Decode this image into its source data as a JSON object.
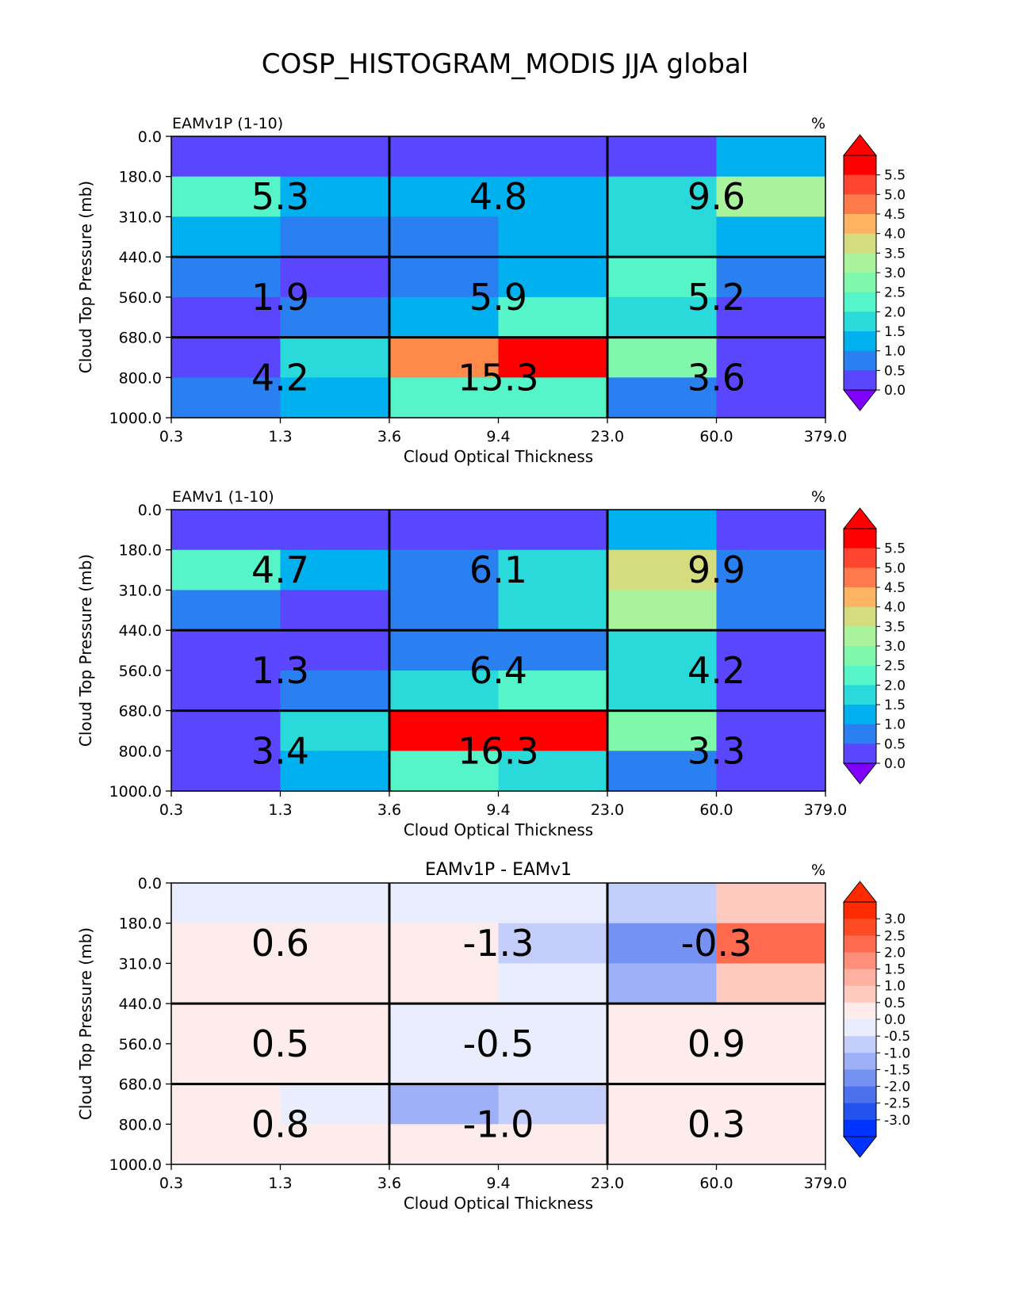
{
  "title": "COSP_HISTOGRAM_MODIS JJA global",
  "chart_data": [
    {
      "type": "heatmap",
      "title": "EAMv1P (1-10)",
      "units": "%",
      "xlabel": "Cloud Optical Thickness",
      "ylabel": "Cloud Top Pressure (mb)",
      "x_ticks": [
        "0.3",
        "1.3",
        "3.6",
        "9.4",
        "23.0",
        "60.0",
        "379.0"
      ],
      "y_ticks": [
        "0.0",
        "180.0",
        "310.0",
        "440.0",
        "560.0",
        "680.0",
        "800.0",
        "1000.0"
      ],
      "cell_colors": [
        [
          "#5a46ff",
          "#5a46ff",
          "#5a46ff",
          "#5a46ff",
          "#5a46ff",
          "#00b0ef"
        ],
        [
          "#56f5c9",
          "#00b0ef",
          "#00b0ef",
          "#00b0ef",
          "#2ad9da",
          "#aaf39d"
        ],
        [
          "#00b0ef",
          "#2a7ff1",
          "#2a7ff1",
          "#00b0ef",
          "#2ad9da",
          "#00b0ef"
        ],
        [
          "#2a7ff1",
          "#5a46ff",
          "#2a7ff1",
          "#00b0ef",
          "#56f5c9",
          "#2a7ff1"
        ],
        [
          "#5a46ff",
          "#2a7ff1",
          "#00b0ef",
          "#56f5c9",
          "#2ad9da",
          "#5a46ff"
        ],
        [
          "#5a46ff",
          "#2ad9da",
          "#ff8a4a",
          "#ff0000",
          "#80f8ab",
          "#5a46ff"
        ],
        [
          "#2a7ff1",
          "#00b0ef",
          "#56f5c9",
          "#56f5c9",
          "#2a7ff1",
          "#5a46ff"
        ]
      ],
      "block_values": [
        [
          "5.3",
          "4.8",
          "9.6"
        ],
        [
          "1.9",
          "5.9",
          "5.2"
        ],
        [
          "4.2",
          "15.3",
          "3.6"
        ]
      ],
      "colorbar": {
        "labels": [
          "5.5",
          "5.0",
          "4.5",
          "4.0",
          "3.5",
          "3.0",
          "2.5",
          "2.0",
          "1.5",
          "1.0",
          "0.5",
          "0.0"
        ],
        "colors": [
          "#ff0000",
          "#ff4530",
          "#ff7a4a",
          "#fdb362",
          "#d4dc7d",
          "#aaf39d",
          "#80f8ab",
          "#56f5c9",
          "#2ad9da",
          "#00b0ef",
          "#2a7ff1",
          "#5a46ff"
        ],
        "over": "#ff0000",
        "under": "#8000ff"
      }
    },
    {
      "type": "heatmap",
      "title": "EAMv1 (1-10)",
      "units": "%",
      "xlabel": "Cloud Optical Thickness",
      "ylabel": "Cloud Top Pressure (mb)",
      "x_ticks": [
        "0.3",
        "1.3",
        "3.6",
        "9.4",
        "23.0",
        "60.0",
        "379.0"
      ],
      "y_ticks": [
        "0.0",
        "180.0",
        "310.0",
        "440.0",
        "560.0",
        "680.0",
        "800.0",
        "1000.0"
      ],
      "cell_colors": [
        [
          "#5a46ff",
          "#5a46ff",
          "#5a46ff",
          "#5a46ff",
          "#00b0ef",
          "#5a46ff"
        ],
        [
          "#56f5c9",
          "#00b0ef",
          "#2a7ff1",
          "#2ad9da",
          "#d4dc7d",
          "#2a7ff1"
        ],
        [
          "#2a7ff1",
          "#5a46ff",
          "#2a7ff1",
          "#2ad9da",
          "#aaf39d",
          "#2a7ff1"
        ],
        [
          "#5a46ff",
          "#5a46ff",
          "#2a7ff1",
          "#2a7ff1",
          "#2ad9da",
          "#5a46ff"
        ],
        [
          "#5a46ff",
          "#2a7ff1",
          "#2ad9da",
          "#56f5c9",
          "#2ad9da",
          "#5a46ff"
        ],
        [
          "#5a46ff",
          "#2ad9da",
          "#ff0000",
          "#ff0000",
          "#80f8ab",
          "#5a46ff"
        ],
        [
          "#5a46ff",
          "#00b0ef",
          "#56f5c9",
          "#2ad9da",
          "#2a7ff1",
          "#5a46ff"
        ]
      ],
      "block_values": [
        [
          "4.7",
          "6.1",
          "9.9"
        ],
        [
          "1.3",
          "6.4",
          "4.2"
        ],
        [
          "3.4",
          "16.3",
          "3.3"
        ]
      ],
      "colorbar": {
        "labels": [
          "5.5",
          "5.0",
          "4.5",
          "4.0",
          "3.5",
          "3.0",
          "2.5",
          "2.0",
          "1.5",
          "1.0",
          "0.5",
          "0.0"
        ],
        "colors": [
          "#ff0000",
          "#ff4530",
          "#ff7a4a",
          "#fdb362",
          "#d4dc7d",
          "#aaf39d",
          "#80f8ab",
          "#56f5c9",
          "#2ad9da",
          "#00b0ef",
          "#2a7ff1",
          "#5a46ff"
        ],
        "over": "#ff0000",
        "under": "#8000ff"
      }
    },
    {
      "type": "heatmap",
      "title": "EAMv1P - EAMv1",
      "units": "%",
      "xlabel": "Cloud Optical Thickness",
      "ylabel": "Cloud Top Pressure (mb)",
      "x_ticks": [
        "0.3",
        "1.3",
        "3.6",
        "9.4",
        "23.0",
        "60.0",
        "379.0"
      ],
      "y_ticks": [
        "0.0",
        "180.0",
        "310.0",
        "440.0",
        "560.0",
        "680.0",
        "800.0",
        "1000.0"
      ],
      "cell_colors": [
        [
          "#e9edfd",
          "#e9edfd",
          "#e9edfd",
          "#e9edfd",
          "#c4cefa",
          "#ffcbc0"
        ],
        [
          "#fdeceb",
          "#fdeceb",
          "#fdeceb",
          "#c4cefa",
          "#7592f3",
          "#ff6a4e"
        ],
        [
          "#fdeceb",
          "#fdeceb",
          "#fdeceb",
          "#e9edfd",
          "#9eb0f7",
          "#ffcbc0"
        ],
        [
          "#fdeceb",
          "#fdeceb",
          "#e9edfd",
          "#e9edfd",
          "#fdeceb",
          "#fdeceb"
        ],
        [
          "#fdeceb",
          "#fdeceb",
          "#e9edfd",
          "#e9edfd",
          "#fdeceb",
          "#fdeceb"
        ],
        [
          "#fdeceb",
          "#e9edfd",
          "#9eb0f7",
          "#c4cefa",
          "#fdeceb",
          "#fdeceb"
        ],
        [
          "#fdeceb",
          "#fdeceb",
          "#fdeceb",
          "#fdeceb",
          "#fdeceb",
          "#fdeceb"
        ]
      ],
      "block_values": [
        [
          "0.6",
          "-1.3",
          "-0.3"
        ],
        [
          "0.5",
          "-0.5",
          "0.9"
        ],
        [
          "0.8",
          "-1.0",
          "0.3"
        ]
      ],
      "colorbar": {
        "labels": [
          "3.0",
          "2.5",
          "2.0",
          "1.5",
          "1.0",
          "0.5",
          "0.0",
          "-0.5",
          "-1.0",
          "-1.5",
          "-2.0",
          "-2.5",
          "-3.0"
        ],
        "colors": [
          "#ff2a00",
          "#ff4a26",
          "#ff6a4e",
          "#ff8f7a",
          "#ffb0a0",
          "#ffcbc0",
          "#fdeceb",
          "#e9edfd",
          "#c4cefa",
          "#9eb0f7",
          "#7592f3",
          "#4d70ee",
          "#2452ee",
          "#0033ff"
        ],
        "over": "#ff2a00",
        "under": "#0033ff"
      }
    }
  ]
}
